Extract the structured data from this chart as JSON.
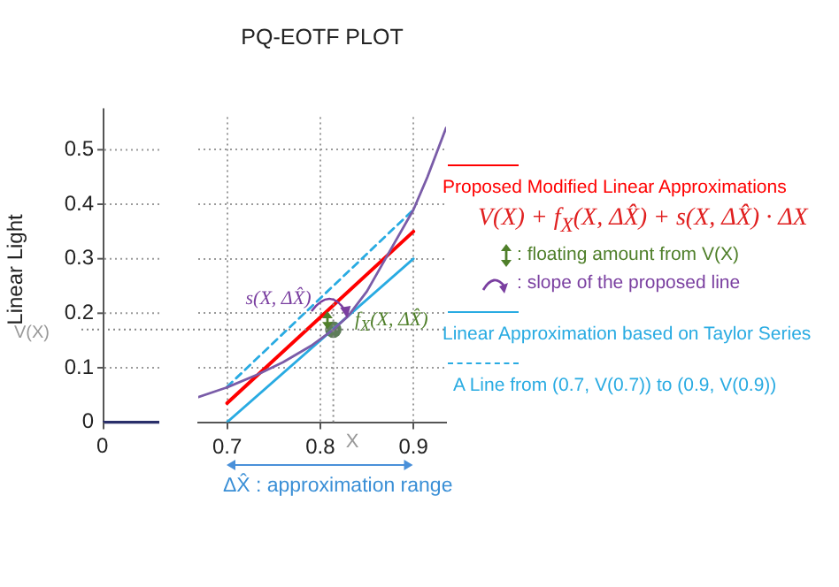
{
  "chart_data": {
    "type": "line",
    "title": "PQ-EOTF PLOT",
    "ylabel": "Linear Light",
    "xlim": [
      0.669,
      0.935
    ],
    "xticks": [
      0.7,
      0.8,
      0.9
    ],
    "ylim": [
      0,
      0.56
    ],
    "yticks": [
      0,
      0.1,
      0.2,
      0.3,
      0.4,
      0.5
    ],
    "grid": true,
    "marker": "none",
    "legend": "right",
    "series": [
      {
        "color": "#7a5ca8",
        "x": [
          0.669,
          0.7,
          0.732,
          0.76,
          0.79,
          0.814,
          0.83,
          0.85,
          0.865,
          0.88,
          0.9,
          0.915,
          0.935
        ],
        "values": [
          0.046,
          0.064,
          0.087,
          0.11,
          0.14,
          0.17,
          0.195,
          0.24,
          0.285,
          0.33,
          0.39,
          0.45,
          0.54
        ]
      },
      {
        "name": "Proposed Modified Linear Approximations",
        "color": "#ff0000",
        "x": [
          0.7,
          0.9
        ],
        "values": [
          0.035,
          0.35
        ]
      },
      {
        "name": "Linear Approximation based on Taylor Series",
        "color": "#29abe2",
        "x": [
          0.7,
          0.9
        ],
        "values": [
          0,
          0.3
        ]
      },
      {
        "name": "A Line from (0.7, V(0.7)) to (0.9, V(0.9))",
        "color": "#29abe2",
        "line_style": "dashed",
        "x": [
          0.7,
          0.9
        ],
        "values": [
          0.065,
          0.39
        ]
      },
      {
        "type": "scatter",
        "marker": "circle",
        "color": "#5e7d5a",
        "x": [
          0.814
        ],
        "values": [
          0.17
        ]
      }
    ],
    "ref_lines": [
      {
        "axis": "x",
        "value": 0.814,
        "label": "X"
      },
      {
        "axis": "y",
        "value": 0.17,
        "label": "V(X)"
      }
    ],
    "annotations": [
      "V(X) + f$_{X}$(X, ΔX̂) + s(X, ΔX̂) · ΔX",
      ": floating amount from V(X)",
      ": slope of the proposed line",
      "ΔX̂ : approximation range",
      "s(X, ΔX̂)",
      "f$_{X}$(X, ΔX̂)",
      "0"
    ]
  }
}
